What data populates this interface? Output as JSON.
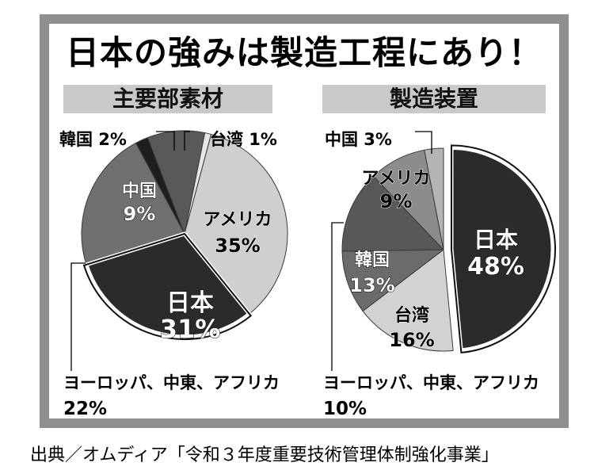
{
  "title": "日本の強みは製造工程にあり！",
  "source": "出典／オムディア「令和３年度重要技術管理体制強化事業」",
  "chart_data": [
    {
      "type": "pie",
      "title": "主要部素材",
      "slices": [
        {
          "label": "日本",
          "value": 31,
          "display": "31%",
          "color": "#2b2b2b",
          "text_color": "#ffffff"
        },
        {
          "label": "ヨーロッパ、中東、アフリカ",
          "value": 22,
          "display": "22%",
          "color": "#707070",
          "text_color": "#000000"
        },
        {
          "label": "韓国",
          "value": 2,
          "display": "2%",
          "color": "#1e1e1e",
          "text_color": "#000000"
        },
        {
          "label": "中国",
          "value": 9,
          "display": "9%",
          "color": "#595959",
          "text_color": "#ffffff"
        },
        {
          "label": "台湾",
          "value": 1,
          "display": "1%",
          "color": "#e6e6e6",
          "text_color": "#000000"
        },
        {
          "label": "アメリカ",
          "value": 35,
          "display": "35%",
          "color": "#cfcfcf",
          "text_color": "#000000"
        }
      ]
    },
    {
      "type": "pie",
      "title": "製造装置",
      "slices": [
        {
          "label": "日本",
          "value": 48,
          "display": "48%",
          "color": "#2b2b2b",
          "text_color": "#ffffff"
        },
        {
          "label": "台湾",
          "value": 16,
          "display": "16%",
          "color": "#d2d2d2",
          "text_color": "#000000"
        },
        {
          "label": "ヨーロッパ、中東、アフリカ",
          "value": 10,
          "display": "10%",
          "color": "#6b6b6b",
          "text_color": "#000000"
        },
        {
          "label": "韓国",
          "value": 13,
          "display": "13%",
          "color": "#585858",
          "text_color": "#ffffff"
        },
        {
          "label": "アメリカ",
          "value": 9,
          "display": "9%",
          "color": "#8c8c8c",
          "text_color": "#000000"
        },
        {
          "label": "中国",
          "value": 3,
          "display": "3%",
          "color": "#b4b4b4",
          "text_color": "#000000"
        }
      ]
    }
  ]
}
